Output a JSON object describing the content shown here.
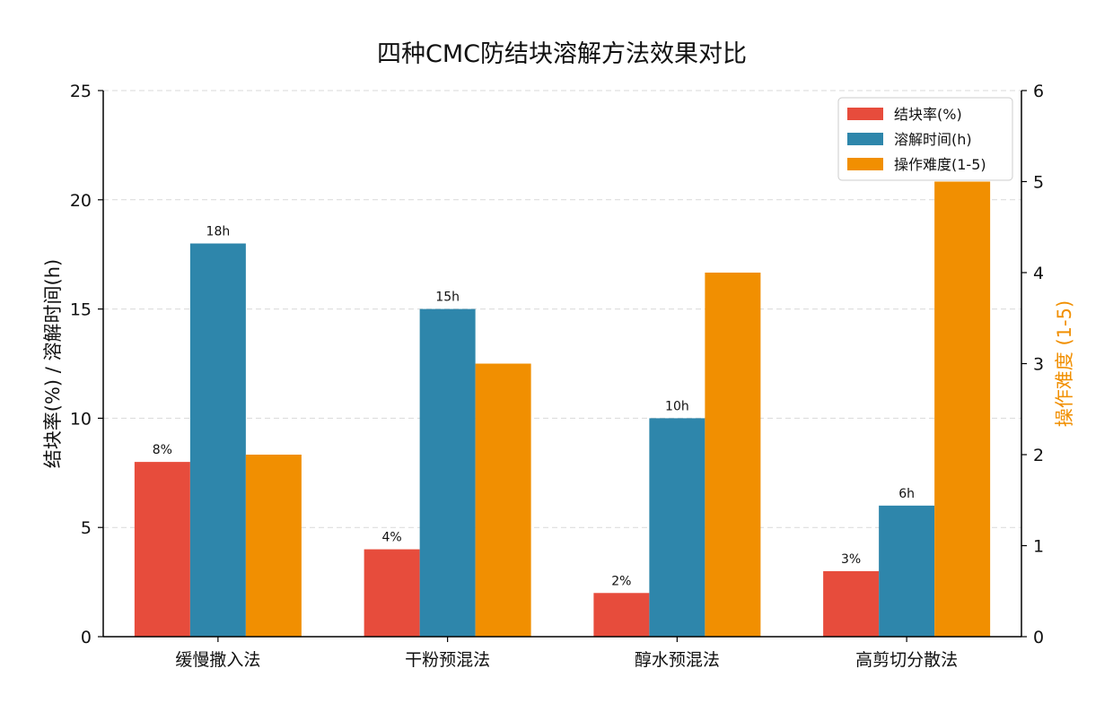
{
  "chart_data": {
    "type": "bar",
    "title": "四种CMC防结块溶解方法效果对比",
    "categories": [
      "缓慢撒入法",
      "干粉预混法",
      "醇水预混法",
      "高剪切分散法"
    ],
    "series": [
      {
        "name": "结块率(%)",
        "axis": "left",
        "color": "#E74C3C",
        "values": [
          8,
          4,
          2,
          3
        ],
        "labels": [
          "8%",
          "4%",
          "2%",
          "3%"
        ]
      },
      {
        "name": "溶解时间(h)",
        "axis": "left",
        "color": "#2E86AB",
        "values": [
          18,
          15,
          10,
          6
        ],
        "labels": [
          "18h",
          "15h",
          "10h",
          "6h"
        ]
      },
      {
        "name": "操作难度(1-5)",
        "axis": "right",
        "color": "#F18F01",
        "values": [
          2,
          3,
          4,
          5
        ],
        "labels": []
      }
    ],
    "left_axis": {
      "label": "结块率(%) / 溶解时间(h)",
      "ylim": [
        0,
        25
      ],
      "ticks": [
        0,
        5,
        10,
        15,
        20,
        25
      ]
    },
    "right_axis": {
      "label": "操作难度 (1-5)",
      "label_color": "#F18F01",
      "ylim": [
        0,
        6
      ],
      "ticks": [
        0,
        1,
        2,
        3,
        4,
        5,
        6
      ]
    },
    "grid": "horizontal dashed",
    "legend_position": "top-right"
  }
}
